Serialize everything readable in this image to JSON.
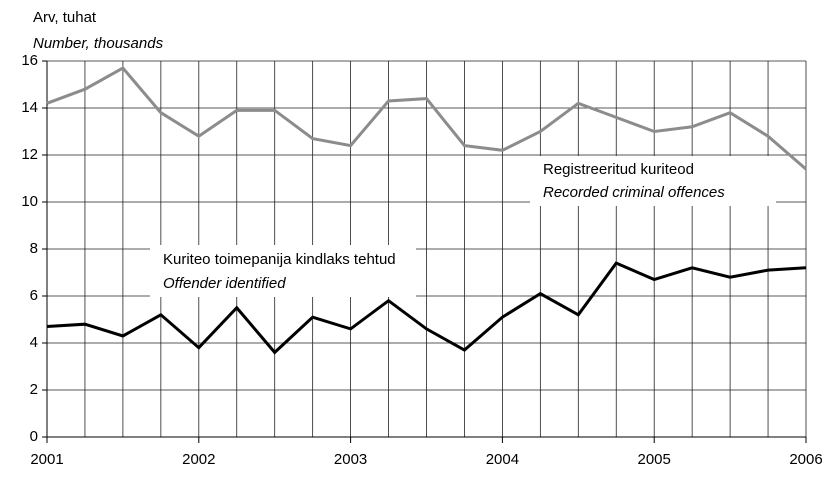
{
  "chart_data": {
    "type": "line",
    "y_label": "Arv, tuhat",
    "y_label_en": "Number, thousands",
    "x": [
      2001,
      2001.25,
      2001.5,
      2001.75,
      2002,
      2002.25,
      2002.5,
      2002.75,
      2003,
      2003.25,
      2003.5,
      2003.75,
      2004,
      2004.25,
      2004.5,
      2004.75,
      2005,
      2005.25,
      2005.5,
      2005.75,
      2006
    ],
    "series": [
      {
        "name": "Registreeritud kuriteod",
        "name_en": "Recorded criminal offences",
        "color": "#8c8c8c",
        "values": [
          14.2,
          14.8,
          15.7,
          13.8,
          12.8,
          13.9,
          13.9,
          12.7,
          12.4,
          14.3,
          14.4,
          12.4,
          12.2,
          13.0,
          14.2,
          13.6,
          13.0,
          13.2,
          13.8,
          12.8,
          11.4
        ]
      },
      {
        "name": "Kuriteo toimepanija kindlaks tehtud",
        "name_en": "Offender identified",
        "color": "#000000",
        "values": [
          4.7,
          4.8,
          4.3,
          5.2,
          3.8,
          5.5,
          3.6,
          5.1,
          4.6,
          5.8,
          4.6,
          3.7,
          5.1,
          6.1,
          5.2,
          7.4,
          6.7,
          7.2,
          6.8,
          7.1,
          7.2
        ]
      }
    ],
    "xlim": [
      2001,
      2006
    ],
    "xticks": [
      2001,
      2002,
      2003,
      2004,
      2005,
      2006
    ],
    "ylim": [
      0,
      16
    ],
    "yticks": [
      0,
      2,
      4,
      6,
      8,
      10,
      12,
      14,
      16
    ],
    "grid": true
  }
}
